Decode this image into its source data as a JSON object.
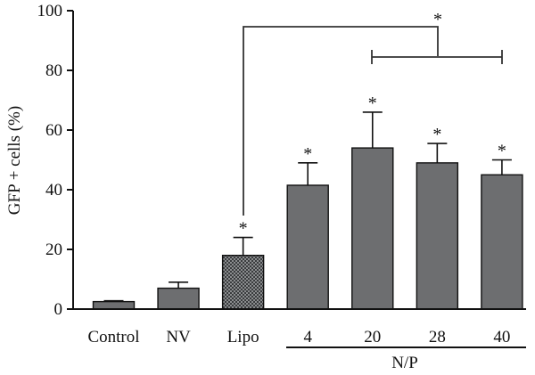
{
  "chart_data": {
    "type": "bar",
    "ylabel": "GFP + cells (%)",
    "xlabel": "",
    "ylim": [
      0,
      100
    ],
    "yticks": [
      0,
      20,
      40,
      60,
      80,
      100
    ],
    "categories": [
      "Control",
      "NV",
      "Lipo",
      "4",
      "20",
      "28",
      "40"
    ],
    "values": [
      2.5,
      7,
      18,
      41.5,
      54,
      49,
      45
    ],
    "errors": [
      0.3,
      2,
      6,
      7.5,
      12,
      6.5,
      5
    ],
    "significant": [
      false,
      false,
      true,
      true,
      true,
      true,
      true
    ],
    "significance_marker": "*",
    "bar_colors": [
      "#6d6e70",
      "#6d6e70",
      "pattern-checker",
      "#6d6e70",
      "#6d6e70",
      "#6d6e70",
      "#6d6e70"
    ],
    "group_label": "N/P",
    "group_categories": [
      "4",
      "20",
      "28",
      "40"
    ],
    "comparison": {
      "from": "Lipo",
      "to_group": [
        "20",
        "40"
      ],
      "marker": "*"
    },
    "grid": false,
    "legend": "none"
  }
}
